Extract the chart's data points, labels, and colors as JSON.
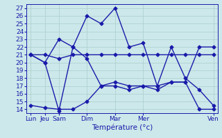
{
  "xlabel": "Température (°c)",
  "background_color": "#cce8ea",
  "line_color": "#1a1aaa",
  "grid_color": "#aacccc",
  "ylim": [
    13.5,
    27.5
  ],
  "yticks": [
    14,
    15,
    16,
    17,
    18,
    19,
    20,
    21,
    22,
    23,
    24,
    25,
    26,
    27
  ],
  "x_tick_positions": [
    0,
    1,
    2,
    4,
    6,
    8,
    13
  ],
  "x_tick_labels": [
    "Lun",
    "Jeu",
    "Sam",
    "Dim",
    "Mar",
    "Mer",
    "Ven"
  ],
  "xlim": [
    -0.3,
    13.3
  ],
  "series": [
    [
      14.5,
      14.2,
      14.0,
      14.0,
      15.0,
      17.0,
      17.0,
      16.5,
      17.0,
      17.0,
      17.5,
      17.5,
      14.0,
      14.0
    ],
    [
      21.0,
      21.0,
      20.5,
      21.0,
      21.0,
      21.0,
      21.0,
      21.0,
      21.0,
      21.0,
      21.0,
      21.0,
      21.0,
      21.0
    ],
    [
      21.0,
      20.0,
      13.8,
      22.0,
      26.0,
      25.0,
      27.0,
      22.0,
      22.5,
      17.0,
      22.0,
      18.0,
      16.5,
      14.5
    ],
    [
      21.0,
      20.0,
      23.0,
      22.0,
      20.5,
      17.0,
      17.5,
      17.0,
      17.0,
      16.5,
      17.5,
      17.5,
      22.0,
      22.0
    ]
  ],
  "marker": "D",
  "marker_size": 2.5,
  "line_width": 1.0,
  "xlabel_fontsize": 7.5,
  "tick_labelsize": 6.5
}
